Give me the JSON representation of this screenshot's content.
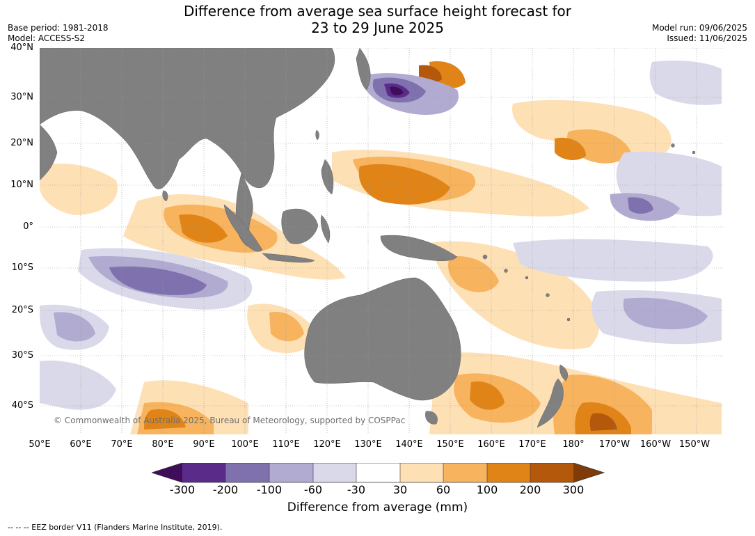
{
  "title": {
    "line1": "Difference from average sea surface height forecast for",
    "line2": "23 to 29 June 2025"
  },
  "meta_left": {
    "base_period": "Base period: 1981-2018",
    "model": "Model: ACCESS-S2"
  },
  "meta_right": {
    "model_run": "Model run: 09/06/2025",
    "issued": "Issued: 11/06/2025"
  },
  "latitude_labels": [
    "40°N",
    "30°N",
    "20°N",
    "10°N",
    "0°",
    "10°S",
    "20°S",
    "30°S",
    "40°S"
  ],
  "longitude_labels": [
    "50°E",
    "60°E",
    "70°E",
    "80°E",
    "90°E",
    "100°E",
    "110°E",
    "120°E",
    "130°E",
    "140°E",
    "150°E",
    "160°E",
    "170°E",
    "180°",
    "170°W",
    "160°W",
    "150°W"
  ],
  "credit": "© Commonwealth of Australia 2025, Bureau of Meteorology, supported by COSPPac",
  "colorbar": {
    "title": "Difference from average (mm)",
    "ticks": [
      "-300",
      "-200",
      "-100",
      "-60",
      "-30",
      "30",
      "60",
      "100",
      "200",
      "300"
    ],
    "colors": [
      "#3f0d5a",
      "#5a2b89",
      "#7f71ae",
      "#b1abd1",
      "#d9d9ea",
      "#ffffff",
      "#fee0b5",
      "#f7b35e",
      "#e08418",
      "#b4590b",
      "#7f3b08"
    ]
  },
  "footnote": "--  --  -- EEZ border V11 (Flanders Marine Institute, 2019).",
  "colors": {
    "land": "#808080",
    "grid": "#999999"
  }
}
